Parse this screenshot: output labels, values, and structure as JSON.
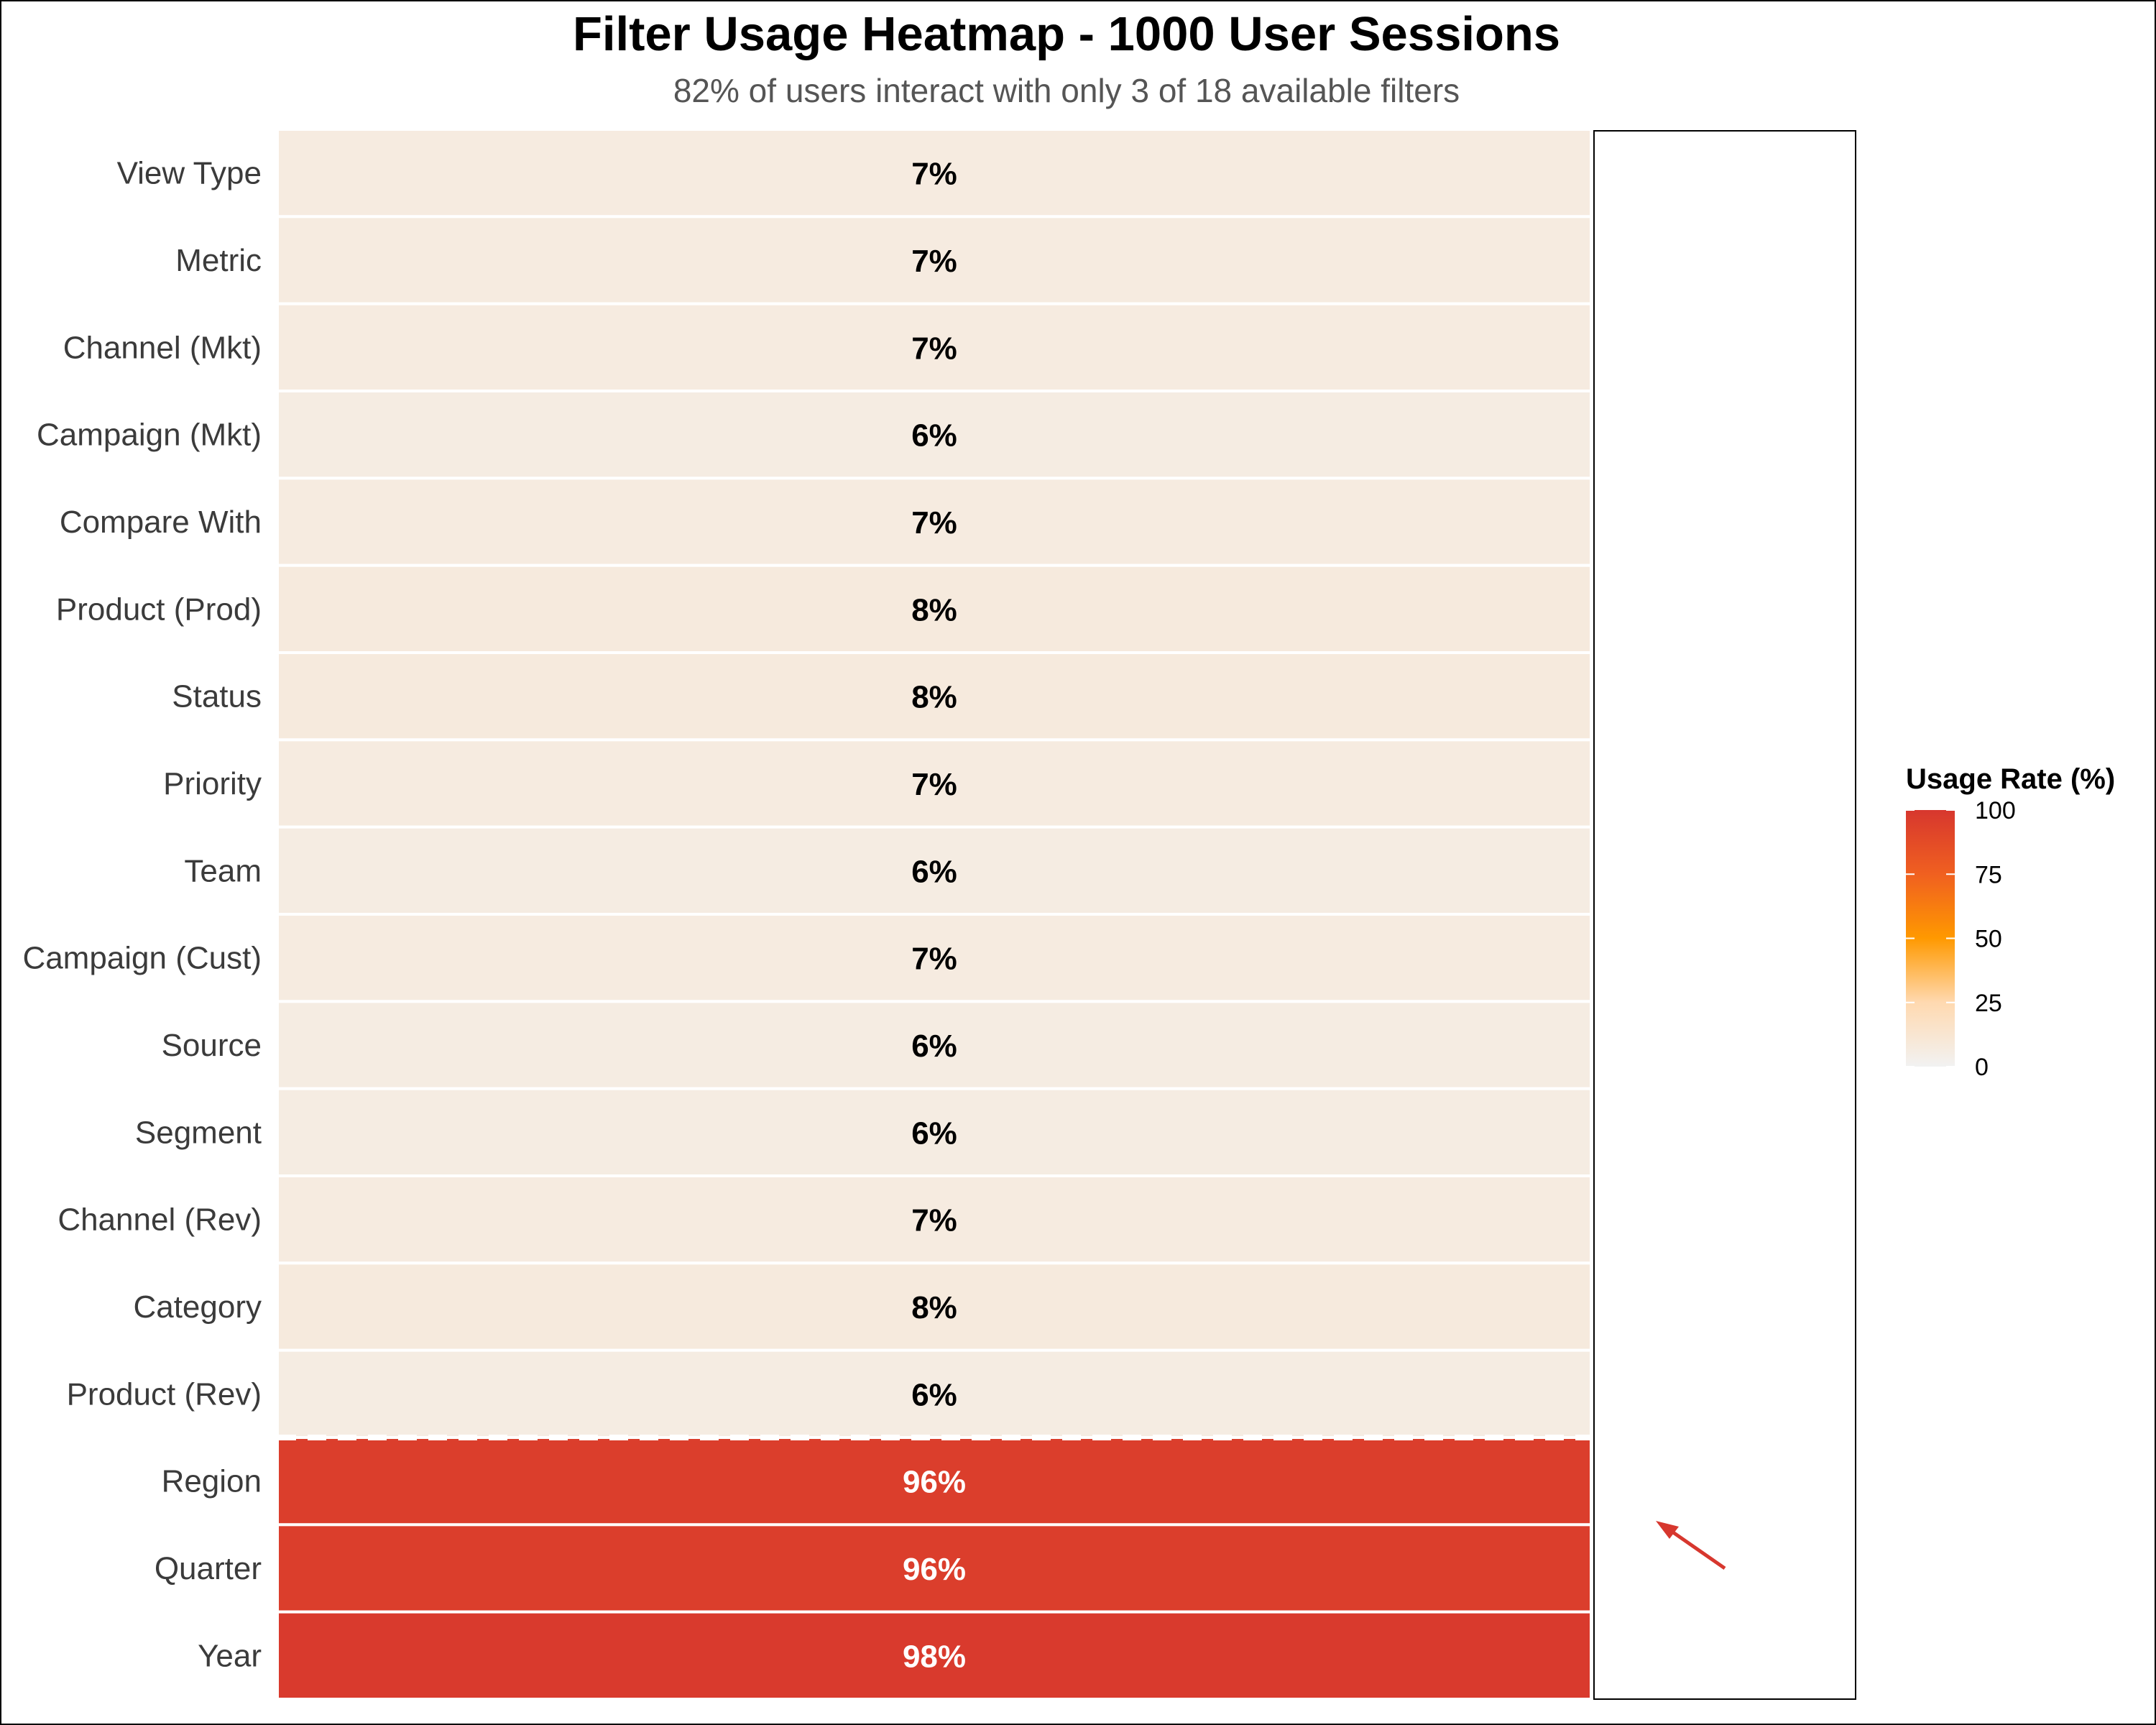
{
  "chart_data": {
    "type": "heatmap",
    "title": "Filter Usage Heatmap - 1000 User Sessions",
    "subtitle": "82% of users interact with only 3 of 18 available filters",
    "categories": [
      "View Type",
      "Metric",
      "Channel (Mkt)",
      "Campaign (Mkt)",
      "Compare With",
      "Product (Prod)",
      "Status",
      "Priority",
      "Team",
      "Campaign (Cust)",
      "Source",
      "Segment",
      "Channel (Rev)",
      "Category",
      "Product (Rev)",
      "Region",
      "Quarter",
      "Year"
    ],
    "values": [
      7,
      7,
      7,
      6,
      7,
      8,
      8,
      7,
      6,
      7,
      6,
      6,
      7,
      8,
      6,
      96,
      96,
      98
    ],
    "value_labels": [
      "7%",
      "7%",
      "7%",
      "6%",
      "7%",
      "8%",
      "8%",
      "7%",
      "6%",
      "7%",
      "6%",
      "6%",
      "7%",
      "8%",
      "6%",
      "96%",
      "96%",
      "98%"
    ],
    "legend": {
      "title": "Usage Rate (%)",
      "ticks": [
        "0",
        "25",
        "50",
        "75",
        "100"
      ],
      "range": [
        0,
        100
      ],
      "placement": "right",
      "colors": [
        "#f2f2f2",
        "#ffd9b0",
        "#ff9900",
        "#f06020",
        "#d7372e"
      ]
    },
    "separator_after": "Product (Rev)",
    "annotation": "arrow pointing to top-used filters",
    "grid": false
  }
}
